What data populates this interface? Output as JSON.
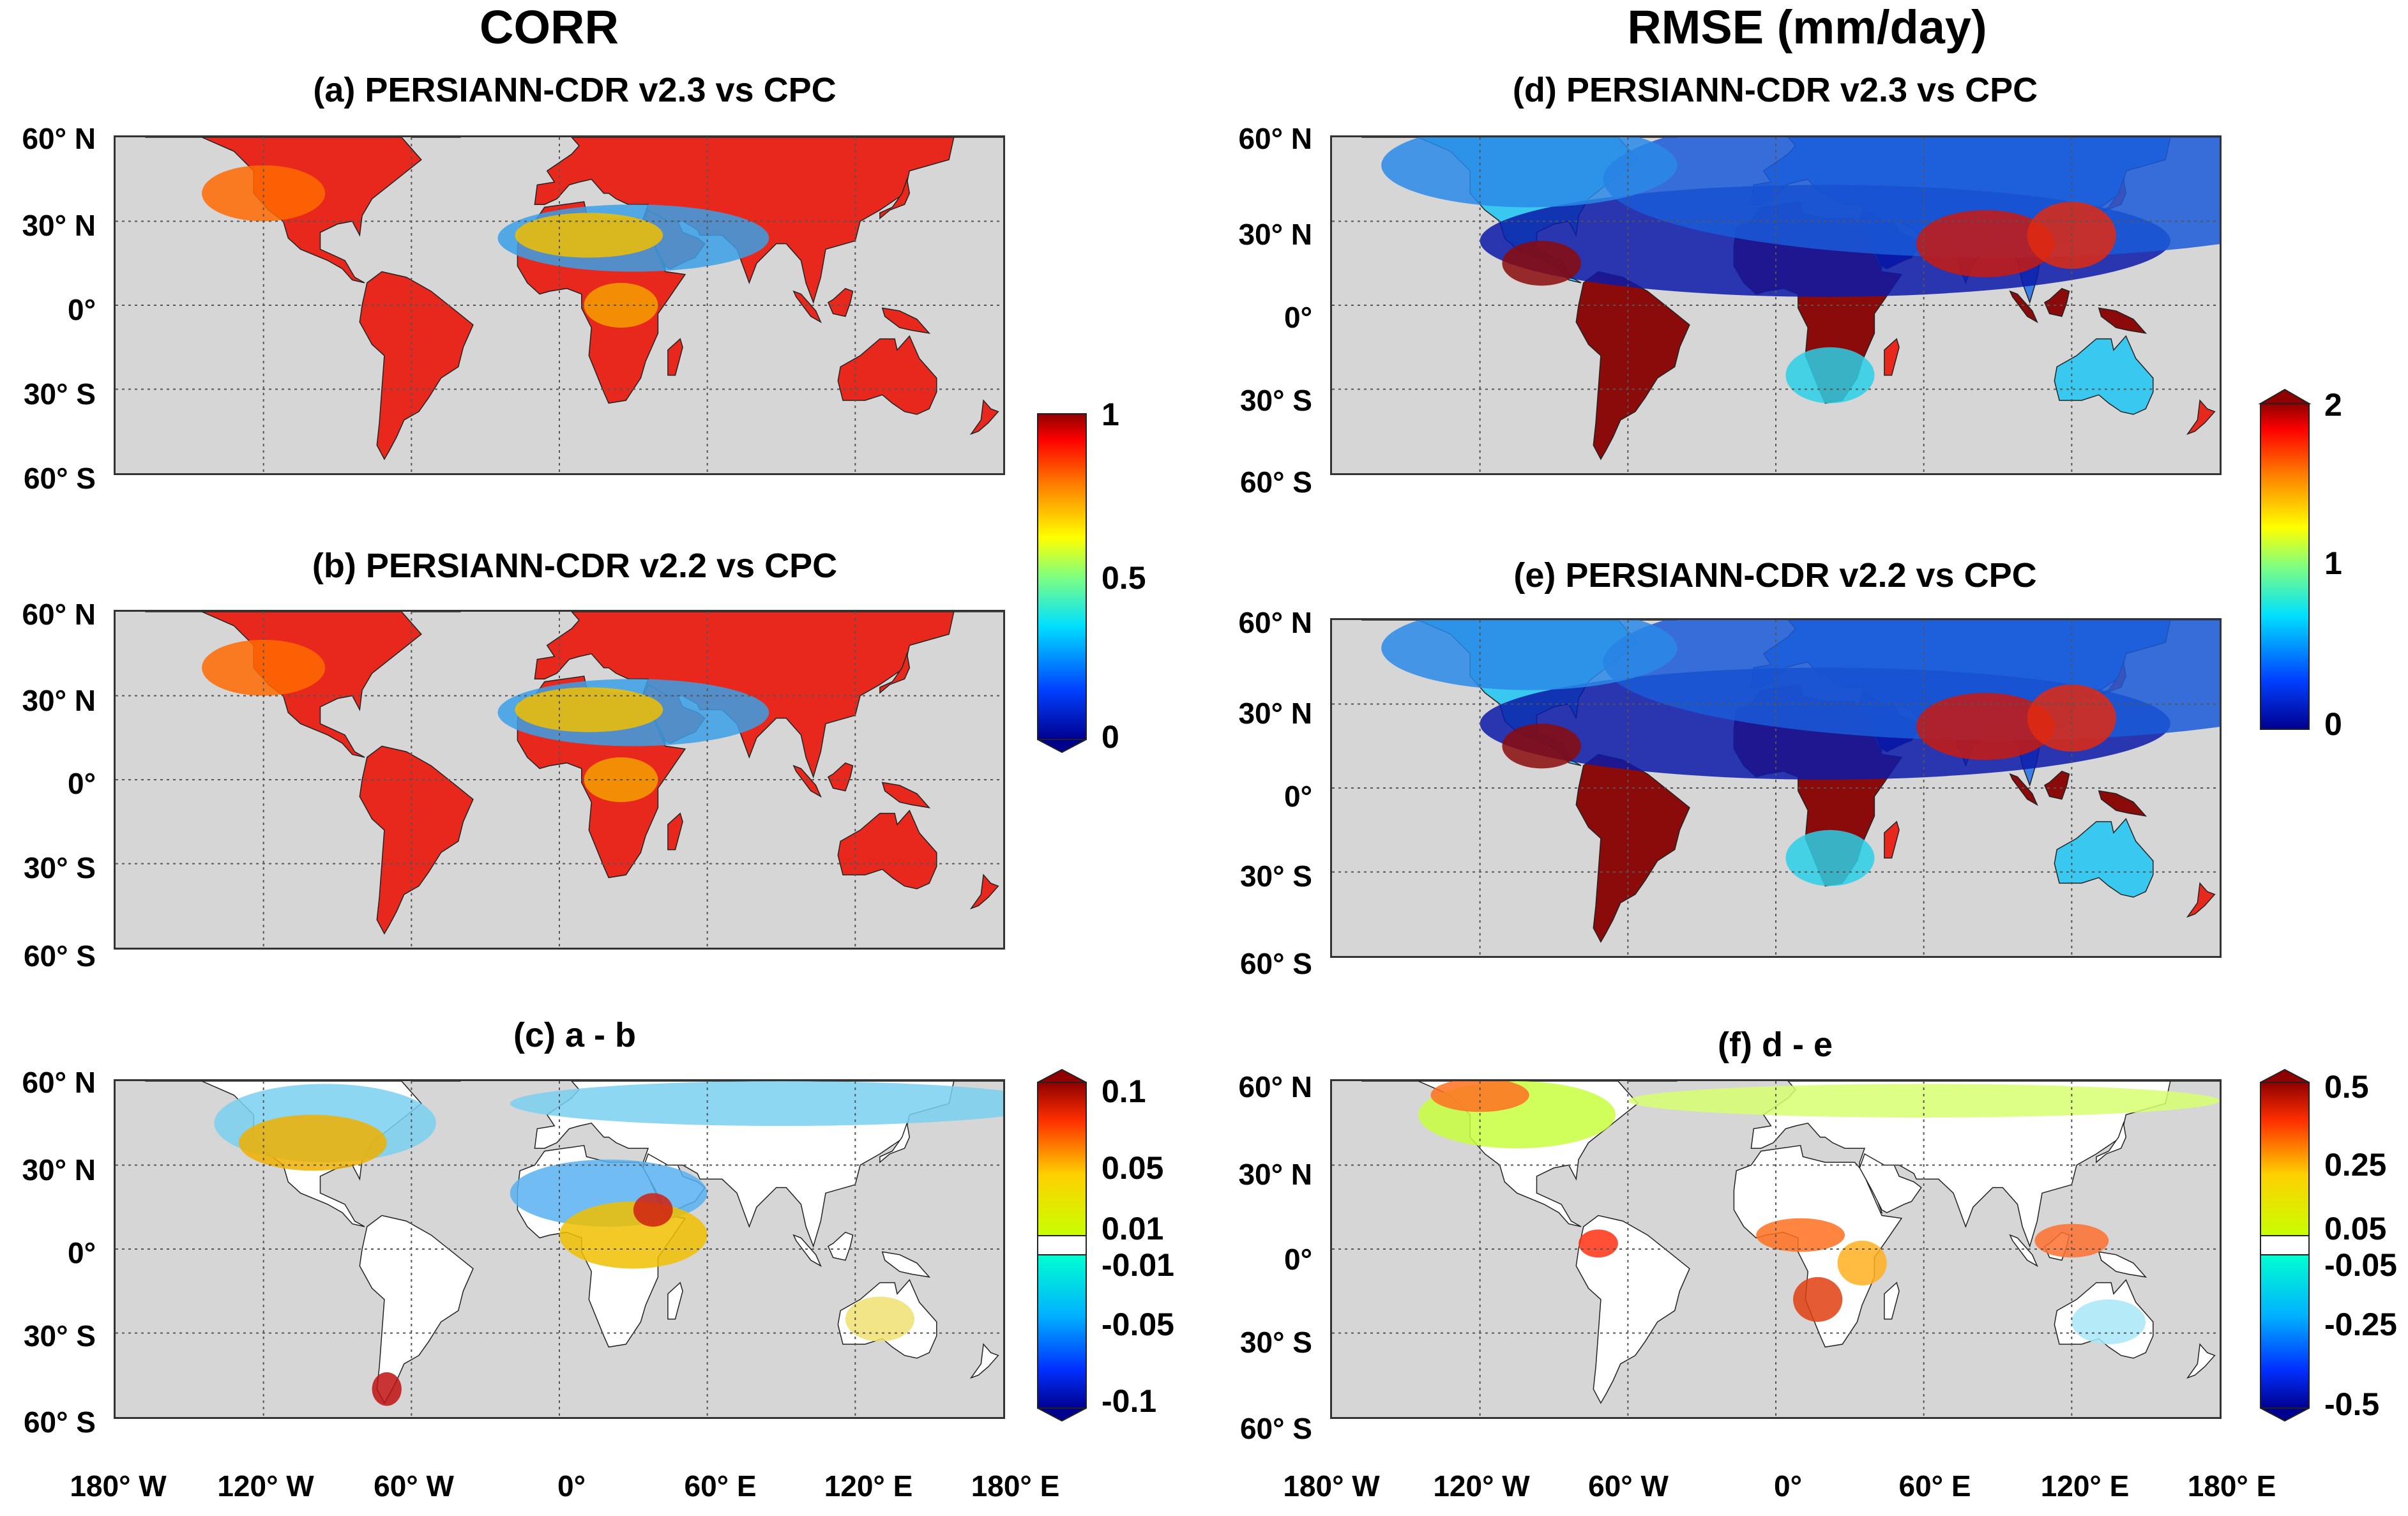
{
  "column_titles": {
    "left": "CORR",
    "right": "RMSE (mm/day)"
  },
  "panels": {
    "a": {
      "title": "(a) PERSIANN-CDR v2.3 vs CPC",
      "metric": "correlation"
    },
    "b": {
      "title": "(b) PERSIANN-CDR v2.2 vs CPC",
      "metric": "correlation"
    },
    "c": {
      "title": "(c) a - b",
      "metric": "correlation difference"
    },
    "d": {
      "title": "(d) PERSIANN-CDR v2.3 vs CPC",
      "metric": "rmse"
    },
    "e": {
      "title": "(e) PERSIANN-CDR v2.2 vs CPC",
      "metric": "rmse"
    },
    "f": {
      "title": "(f) d - e",
      "metric": "rmse difference"
    }
  },
  "lat_labels": [
    "60° N",
    "30° N",
    "0°",
    "30° S",
    "60° S"
  ],
  "lon_labels": [
    "180° W",
    "120° W",
    "60° W",
    "0°",
    "60° E",
    "120° E",
    "180° E"
  ],
  "colorbars": {
    "corr": {
      "ticks": [
        "1",
        "0.5",
        "0"
      ],
      "range": [
        0,
        1
      ]
    },
    "corr_diff": {
      "ticks": [
        "0.1",
        "0.05",
        "0.01",
        "-0.01",
        "-0.05",
        "-0.1"
      ],
      "range": [
        -0.1,
        0.1
      ]
    },
    "rmse": {
      "ticks": [
        "2",
        "1",
        "0"
      ],
      "range": [
        0,
        2
      ]
    },
    "rmse_diff": {
      "ticks": [
        "0.5",
        "0.25",
        "0.05",
        "-0.05",
        "-0.25",
        "-0.5"
      ],
      "range": [
        -0.5,
        0.5
      ]
    }
  },
  "colors": {
    "ocean": "#d6d6d6",
    "high": "#e8281c",
    "very_high": "#8b0a0a",
    "mid": "#f5d800",
    "low": "#1f6fe8",
    "very_low": "#0a1aa8",
    "cyan": "#38c8f0",
    "none": "#ffffff"
  }
}
